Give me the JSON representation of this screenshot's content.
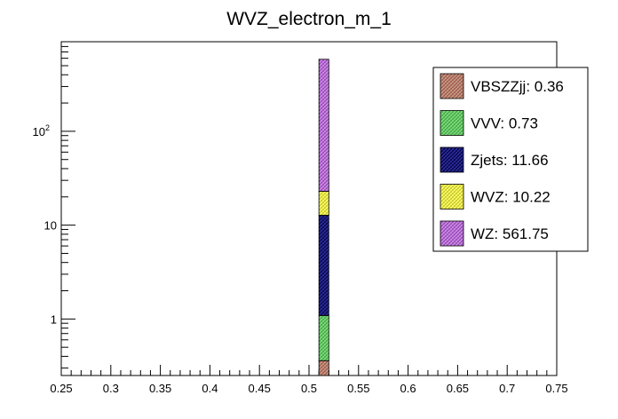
{
  "chart_data": {
    "type": "bar",
    "title": "WVZ_electron_m_1",
    "xlabel": "",
    "ylabel": "",
    "x_range": [
      0.25,
      0.75
    ],
    "y_scale": "log",
    "y_range": [
      0.25,
      900
    ],
    "x_ticks": [
      "0.25",
      "0.3",
      "0.35",
      "0.4",
      "0.45",
      "0.5",
      "0.55",
      "0.6",
      "0.65",
      "0.7",
      "0.75"
    ],
    "y_ticks": [
      {
        "value": 1,
        "label": "1"
      },
      {
        "value": 10,
        "label": "10"
      },
      {
        "value": 100,
        "label": "10",
        "exp": "2"
      }
    ],
    "stacked": true,
    "bin": [
      0.51,
      0.52
    ],
    "series": [
      {
        "name": "VBSZZjj",
        "value": 0.36,
        "color": "#c8a080",
        "hatch": "#9b5050"
      },
      {
        "name": "VVV",
        "value": 0.73,
        "color": "#80e080",
        "hatch": "#40a040"
      },
      {
        "name": "Zjets",
        "value": 11.66,
        "color": "#3030a0",
        "hatch": "#000040"
      },
      {
        "name": "WVZ",
        "value": 10.22,
        "color": "#ffff70",
        "hatch": "#c0c020"
      },
      {
        "name": "WZ",
        "value": 561.75,
        "color": "#d090e8",
        "hatch": "#9040b0"
      }
    ],
    "legend": {
      "position": "top-right",
      "entries": [
        "VBSZZjj: 0.36",
        "VVV: 0.73",
        "Zjets: 11.66",
        "WVZ: 10.22",
        "WZ: 561.75"
      ]
    },
    "grid": false
  }
}
